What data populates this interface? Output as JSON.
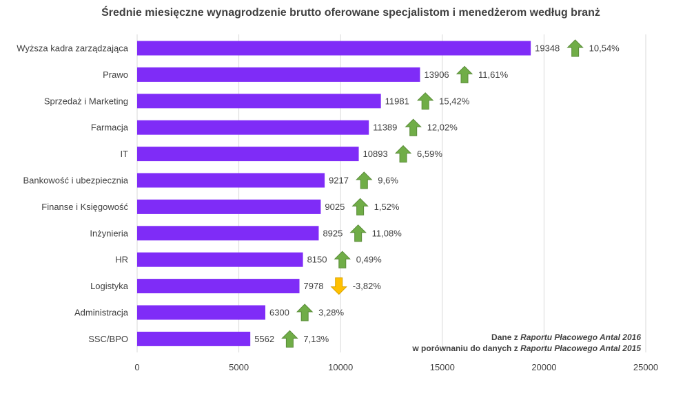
{
  "chart_data": {
    "type": "bar",
    "orientation": "horizontal",
    "title": "Średnie miesięczne wynagrodzenie brutto oferowane specjalistom i menedżerom według branż",
    "categories": [
      "Wyższa kadra zarządzająca",
      "Prawo",
      "Sprzedaż i Marketing",
      "Farmacja",
      "IT",
      "Bankowość i ubezpiecznia",
      "Finanse i Księgowość",
      "Inżynieria",
      "HR",
      "Logistyka",
      "Administracja",
      "SSC/BPO"
    ],
    "values": [
      19348,
      13906,
      11981,
      11389,
      10893,
      9217,
      9025,
      8925,
      8150,
      7978,
      6300,
      5562
    ],
    "changes": [
      "10,54%",
      "11,61%",
      "15,42%",
      "12,02%",
      "6,59%",
      "9,6%",
      "1,52%",
      "11,08%",
      "0,49%",
      "-3,82%",
      "3,28%",
      "7,13%"
    ],
    "change_directions": [
      "up",
      "up",
      "up",
      "up",
      "up",
      "up",
      "up",
      "up",
      "up",
      "down",
      "up",
      "up"
    ],
    "xlim": [
      0,
      25000
    ],
    "x_ticks": [
      "0",
      "5000",
      "10000",
      "15000",
      "20000",
      "25000"
    ],
    "grid": true,
    "colors": {
      "bar": "#7F2CF7",
      "up_arrow": "#70AD47",
      "down_arrow": "#FFC000",
      "text": "#404040",
      "grid": "#D9D9D9"
    }
  },
  "note": {
    "line1_prefix": "Dane z ",
    "line1_italic": "Raportu Płacowego Antal 2016",
    "line2_prefix": "w porównaniu do danych z ",
    "line2_italic": "Raportu Płacowego Antal 2015"
  }
}
